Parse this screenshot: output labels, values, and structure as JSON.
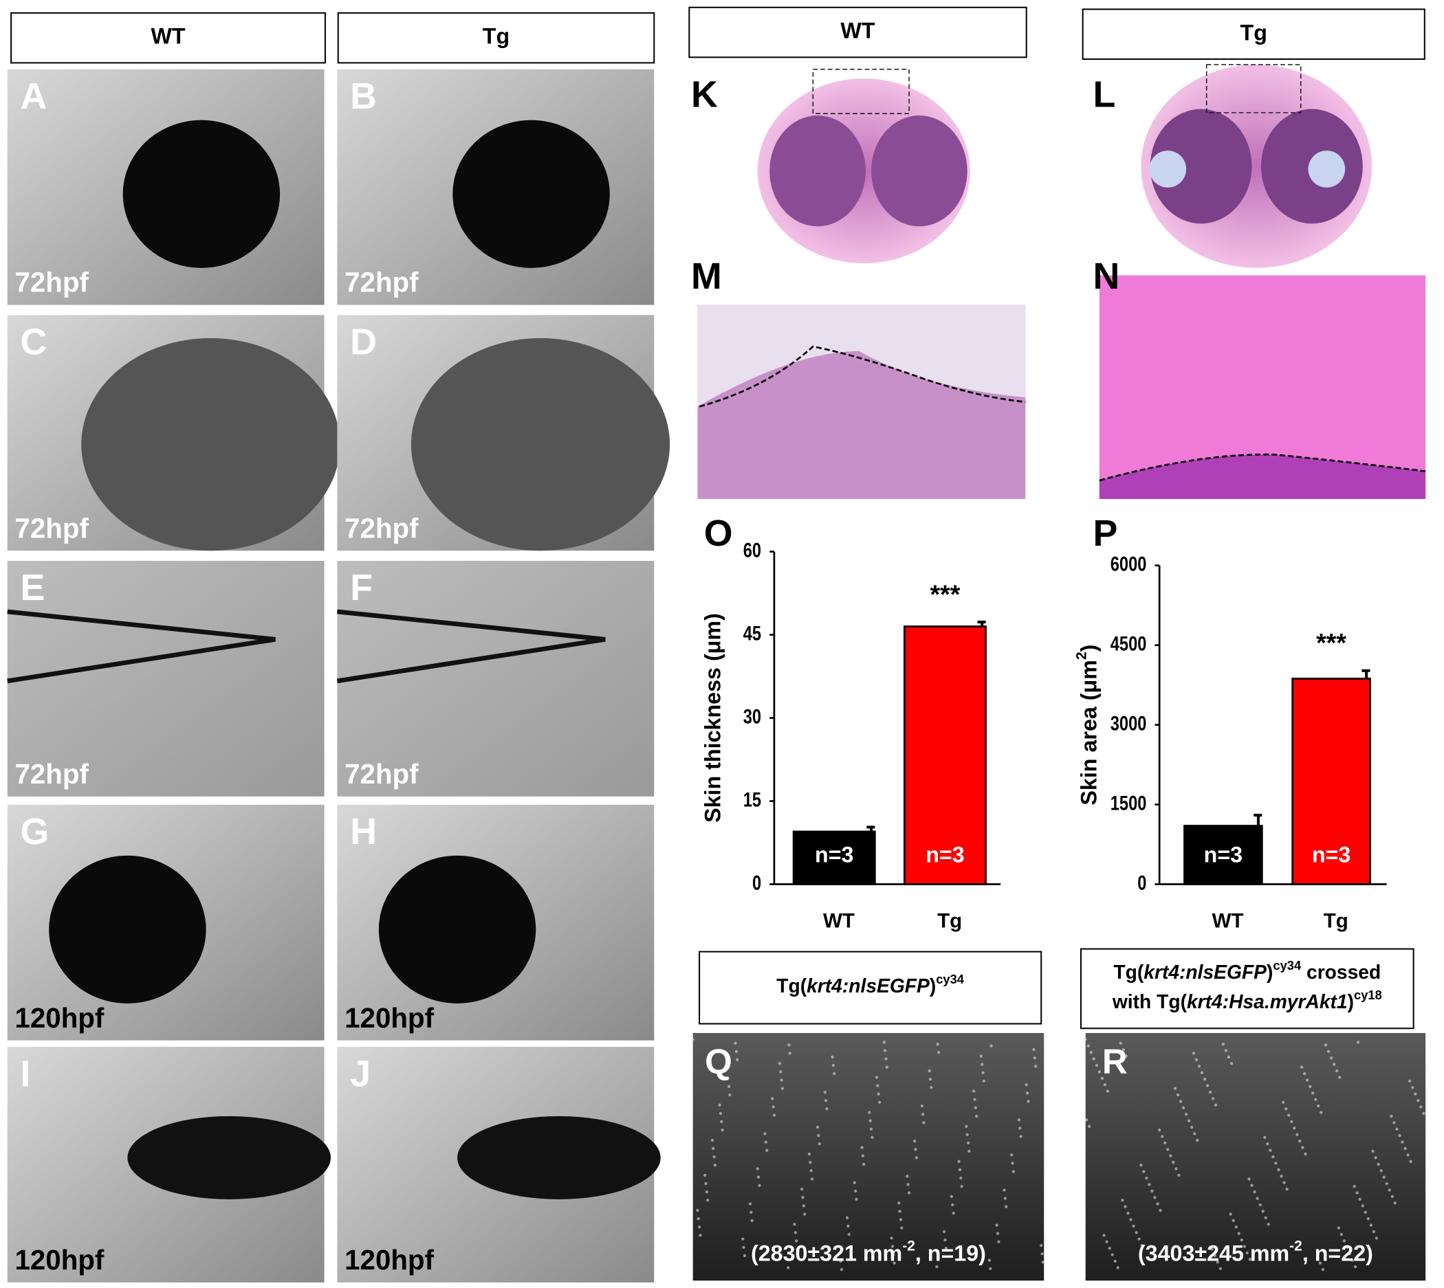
{
  "headers": [
    "WT",
    "Tg",
    "WT",
    "Tg"
  ],
  "panels": [
    {
      "letter": "A",
      "label": "72hpf"
    },
    {
      "letter": "B",
      "label": "72hpf"
    },
    {
      "letter": "C",
      "label": "72hpf"
    },
    {
      "letter": "D",
      "label": "72hpf"
    },
    {
      "letter": "E",
      "label": "72hpf"
    },
    {
      "letter": "F",
      "label": "72hpf"
    },
    {
      "letter": "G",
      "label": "120hpf"
    },
    {
      "letter": "H",
      "label": "120hpf"
    },
    {
      "letter": "I",
      "label": "120hpf"
    },
    {
      "letter": "J",
      "label": "120hpf"
    }
  ],
  "histology": [
    "K",
    "L",
    "M",
    "N"
  ],
  "chart_data": [
    {
      "type": "bar",
      "letter": "O",
      "ylabel": [
        {
          "text": "Skin thickness (μm)"
        }
      ],
      "categories": [
        "WT",
        "Tg"
      ],
      "values": [
        9.5,
        46.5
      ],
      "errors": [
        0.8,
        0.8
      ],
      "colors": [
        "#000000",
        "#ff0000"
      ],
      "annotations": [
        "n=3",
        "n=3"
      ],
      "significance": [
        null,
        "***"
      ],
      "ylim": [
        0,
        60
      ],
      "yticks": [
        0,
        15,
        30,
        45,
        60
      ]
    },
    {
      "type": "bar",
      "letter": "P",
      "ylabel": [
        {
          "text": "Skin area (μm"
        },
        {
          "text": "2",
          "sup": true
        },
        {
          "text": ")"
        }
      ],
      "categories": [
        "WT",
        "Tg"
      ],
      "values": [
        1100,
        3870
      ],
      "errors": [
        200,
        150
      ],
      "colors": [
        "#000000",
        "#ff0000"
      ],
      "annotations": [
        "n=3",
        "n=3"
      ],
      "significance": [
        null,
        "***"
      ],
      "ylim": [
        0,
        6000
      ],
      "yticks": [
        0,
        1500,
        3000,
        4500,
        6000
      ]
    }
  ],
  "fluorescence": [
    {
      "letter": "Q",
      "title": [
        [
          {
            "text": "Tg("
          },
          {
            "text": "krt4:nlsEGFP",
            "italic": true
          },
          {
            "text": ")"
          },
          {
            "text": "cy34",
            "sup": true
          }
        ]
      ],
      "count": [
        {
          "text": "(2830±321 mm"
        },
        {
          "text": "-2",
          "sup": true
        },
        {
          "text": ", n=19)"
        }
      ]
    },
    {
      "letter": "R",
      "title": [
        [
          {
            "text": "Tg("
          },
          {
            "text": "krt4:nlsEGFP",
            "italic": true
          },
          {
            "text": ")"
          },
          {
            "text": "cy34",
            "sup": true
          },
          {
            "text": " crossed"
          }
        ],
        [
          {
            "text": "with Tg("
          },
          {
            "text": "krt4:Hsa.myrAkt1",
            "italic": true
          },
          {
            "text": ")"
          },
          {
            "text": "cy18",
            "sup": true
          }
        ]
      ],
      "count": [
        {
          "text": "(3403±245 mm"
        },
        {
          "text": "-2",
          "sup": true
        },
        {
          "text": ", n=22)"
        }
      ]
    }
  ]
}
